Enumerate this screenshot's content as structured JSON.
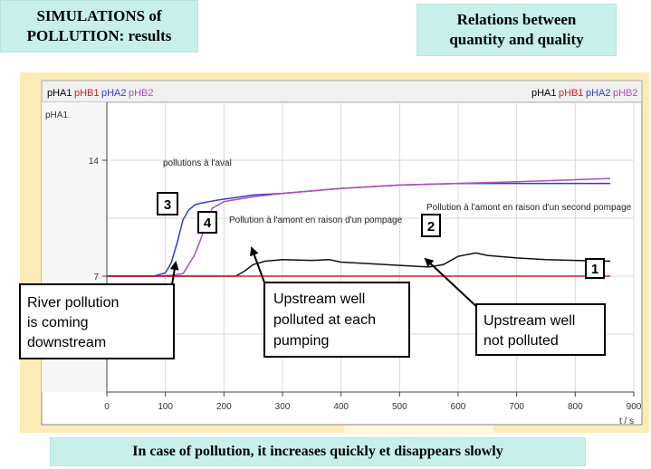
{
  "header": {
    "left_title": [
      "SIMULATIONS of",
      "POLLUTION: results"
    ],
    "right_title": [
      "Relations between",
      "quantity and quality"
    ]
  },
  "footer": {
    "caption": "In case of pollution, it increases quickly et disappears slowly"
  },
  "chart_data": {
    "type": "line",
    "ylabel": "pHA1",
    "xunit": "t / s",
    "y_ticks": [
      14,
      7
    ],
    "x_ticks": [
      0,
      100,
      200,
      300,
      400,
      500,
      600,
      700,
      800,
      900
    ],
    "xlim": [
      0,
      900
    ],
    "grid": true,
    "legend_tabs_left": [
      "pHA1",
      "pHB1",
      "pHA2",
      "pHB2"
    ],
    "legend_tabs_right": [
      "pHA1",
      "pHB1",
      "pHA2",
      "pHB2"
    ],
    "series": [
      {
        "name": "pHA2",
        "color": "#2d3ed6",
        "x": [
          0,
          80,
          100,
          110,
          120,
          130,
          140,
          150,
          160,
          175,
          190,
          210,
          250,
          300,
          400,
          500,
          600,
          700,
          860
        ],
        "y": [
          7.0,
          7.0,
          7.2,
          7.8,
          9.0,
          10.4,
          11.0,
          11.3,
          11.4,
          11.5,
          11.6,
          11.7,
          11.9,
          12.0,
          12.3,
          12.5,
          12.6,
          12.6,
          12.6
        ]
      },
      {
        "name": "pHB2",
        "color": "#b050b8",
        "x": [
          0,
          80,
          110,
          130,
          140,
          150,
          160,
          170,
          180,
          200,
          250,
          300,
          400,
          500,
          600,
          700,
          860
        ],
        "y": [
          7.0,
          7.0,
          7.05,
          7.15,
          7.7,
          8.3,
          9.2,
          10.3,
          11.1,
          11.5,
          11.8,
          12.0,
          12.3,
          12.5,
          12.6,
          12.7,
          12.9
        ]
      },
      {
        "name": "pHA1",
        "color": "#111111",
        "x": [
          0,
          220,
          235,
          250,
          270,
          300,
          350,
          380,
          400,
          450,
          500,
          550,
          575,
          600,
          630,
          650,
          700,
          750,
          800,
          860
        ],
        "y": [
          7.0,
          7.0,
          7.3,
          7.7,
          7.9,
          8.0,
          7.95,
          8.0,
          7.85,
          7.75,
          7.65,
          7.55,
          7.7,
          8.2,
          8.4,
          8.25,
          8.1,
          8.0,
          7.95,
          7.9
        ]
      },
      {
        "name": "pHB1",
        "color": "#d42020",
        "x": [
          0,
          100,
          200,
          300,
          400,
          500,
          600,
          700,
          860
        ],
        "y": [
          7.0,
          7.0,
          7.0,
          7.0,
          7.0,
          7.0,
          7.0,
          7.0,
          7.0
        ]
      }
    ],
    "annotations": {
      "aval": "pollutions à l'aval",
      "amont1": "Pollution à l'amont en raison d'un pompage",
      "amont2": "Pollution à l'amont en raison d'un second pompage"
    },
    "badges": [
      "1",
      "2",
      "3",
      "4"
    ],
    "callouts": {
      "river": [
        "River pollution",
        "is coming",
        "downstream"
      ],
      "upstream_each": [
        "Upstream well",
        "polluted at each",
        "pumping"
      ],
      "upstream_not": [
        "Upstream well",
        "not polluted"
      ]
    }
  }
}
